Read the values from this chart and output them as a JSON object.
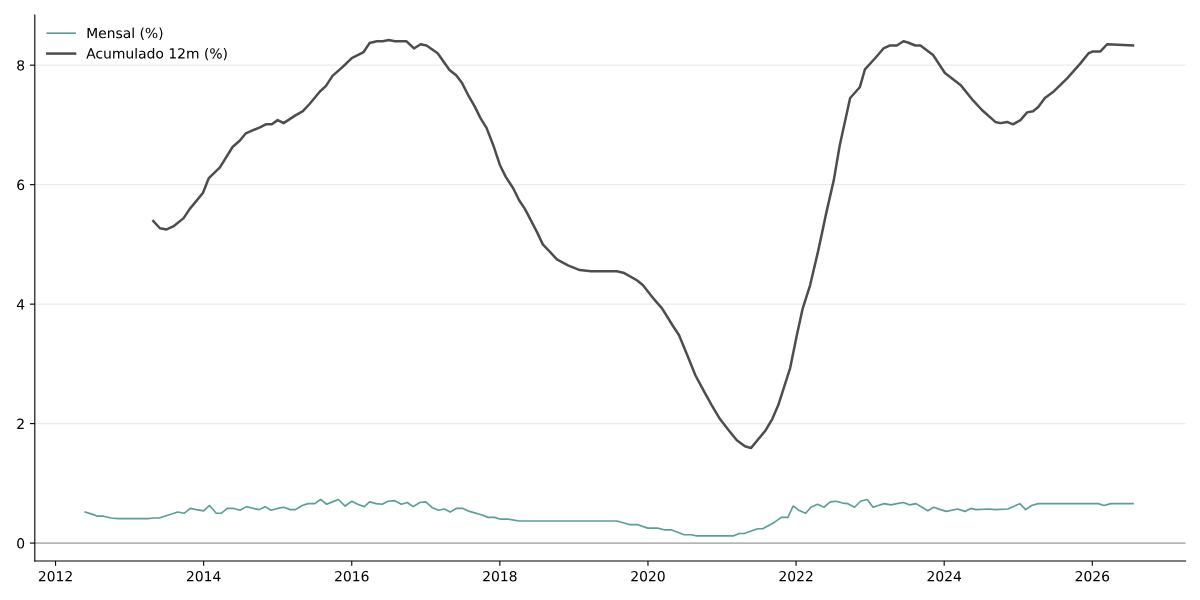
{
  "chart_data": {
    "type": "line",
    "xlim": [
      2011.72,
      2027.26
    ],
    "xticks": [
      2012,
      2014,
      2016,
      2018,
      2020,
      2022,
      2024,
      2026
    ],
    "ylim": [
      -0.3,
      8.84
    ],
    "yticks": [
      0,
      2,
      4,
      6,
      8
    ],
    "grid": "y",
    "legend": "top left",
    "marker": "none",
    "line_style": "solid",
    "ref_lines": [
      {
        "axis": "y",
        "value": 0,
        "color": "#a0a0a0"
      }
    ],
    "series": [
      {
        "name": "Mensal (%)",
        "color": "#5a9e98",
        "x": [
          2012.4,
          2012.5,
          2012.57,
          2012.65,
          2012.75,
          2012.85,
          2013.25,
          2013.32,
          2013.4,
          2013.58,
          2013.65,
          2013.74,
          2013.82,
          2013.9,
          2014.0,
          2014.08,
          2014.17,
          2014.24,
          2014.32,
          2014.41,
          2014.49,
          2014.58,
          2014.67,
          2014.75,
          2014.83,
          2014.91,
          2015.0,
          2015.08,
          2015.17,
          2015.24,
          2015.33,
          2015.41,
          2015.5,
          2015.58,
          2015.66,
          2015.74,
          2015.82,
          2015.91,
          2016.0,
          2016.08,
          2016.17,
          2016.24,
          2016.33,
          2016.41,
          2016.49,
          2016.58,
          2016.67,
          2016.75,
          2016.83,
          2016.92,
          2017.0,
          2017.09,
          2017.17,
          2017.25,
          2017.33,
          2017.41,
          2017.5,
          2017.59,
          2017.76,
          2017.84,
          2017.93,
          2018.01,
          2018.11,
          2018.26,
          2019.35,
          2019.58,
          2019.75,
          2019.85,
          2020.0,
          2020.13,
          2020.23,
          2020.32,
          2020.49,
          2020.58,
          2020.66,
          2021.15,
          2021.23,
          2021.3,
          2021.48,
          2021.55,
          2021.71,
          2021.8,
          2021.89,
          2021.96,
          2022.05,
          2022.13,
          2022.2,
          2022.29,
          2022.38,
          2022.46,
          2022.54,
          2022.63,
          2022.7,
          2022.79,
          2022.87,
          2022.96,
          2023.04,
          2023.11,
          2023.19,
          2023.28,
          2023.36,
          2023.45,
          2023.53,
          2023.62,
          2023.7,
          2023.78,
          2023.86,
          2023.95,
          2024.03,
          2024.18,
          2024.28,
          2024.36,
          2024.43,
          2024.61,
          2024.68,
          2024.86,
          2024.93,
          2025.02,
          2025.1,
          2025.18,
          2025.27,
          2025.43,
          2025.53,
          2026.08,
          2026.16,
          2026.25,
          2026.43,
          2026.55
        ],
        "values": [
          0.52,
          0.48,
          0.45,
          0.45,
          0.42,
          0.41,
          0.41,
          0.42,
          0.42,
          0.49,
          0.52,
          0.5,
          0.58,
          0.56,
          0.54,
          0.63,
          0.5,
          0.5,
          0.58,
          0.58,
          0.55,
          0.61,
          0.58,
          0.56,
          0.61,
          0.55,
          0.58,
          0.6,
          0.56,
          0.56,
          0.63,
          0.66,
          0.66,
          0.73,
          0.65,
          0.69,
          0.73,
          0.62,
          0.7,
          0.65,
          0.61,
          0.69,
          0.66,
          0.65,
          0.7,
          0.71,
          0.65,
          0.68,
          0.61,
          0.68,
          0.69,
          0.59,
          0.55,
          0.57,
          0.52,
          0.58,
          0.58,
          0.53,
          0.47,
          0.43,
          0.43,
          0.4,
          0.4,
          0.37,
          0.37,
          0.37,
          0.31,
          0.31,
          0.25,
          0.25,
          0.22,
          0.22,
          0.14,
          0.14,
          0.12,
          0.12,
          0.16,
          0.16,
          0.24,
          0.24,
          0.35,
          0.43,
          0.43,
          0.62,
          0.54,
          0.5,
          0.6,
          0.65,
          0.6,
          0.69,
          0.7,
          0.67,
          0.66,
          0.6,
          0.7,
          0.73,
          0.6,
          0.63,
          0.66,
          0.64,
          0.66,
          0.68,
          0.64,
          0.66,
          0.6,
          0.54,
          0.6,
          0.56,
          0.53,
          0.57,
          0.53,
          0.58,
          0.56,
          0.57,
          0.56,
          0.57,
          0.61,
          0.66,
          0.56,
          0.63,
          0.66,
          0.66,
          0.66,
          0.66,
          0.63,
          0.66,
          0.66,
          0.66
        ]
      },
      {
        "name": "Acumulado 12m (%)",
        "color": "#4d4d4d",
        "x": [
          2013.32,
          2013.41,
          2013.5,
          2013.59,
          2013.73,
          2013.81,
          2013.99,
          2014.07,
          2014.22,
          2014.39,
          2014.49,
          2014.57,
          2014.76,
          2014.84,
          2014.92,
          2015.0,
          2015.08,
          2015.24,
          2015.34,
          2015.43,
          2015.57,
          2015.65,
          2015.74,
          2015.84,
          2015.92,
          2016.0,
          2016.16,
          2016.24,
          2016.34,
          2016.42,
          2016.5,
          2016.58,
          2016.74,
          2016.84,
          2016.93,
          2017.01,
          2017.16,
          2017.32,
          2017.41,
          2017.49,
          2017.58,
          2017.66,
          2017.74,
          2017.82,
          2017.92,
          2018.0,
          2018.08,
          2018.18,
          2018.26,
          2018.34,
          2018.5,
          2018.58,
          2018.68,
          2018.77,
          2018.92,
          2019.08,
          2019.23,
          2019.58,
          2019.68,
          2019.85,
          2019.93,
          2020.09,
          2020.19,
          2020.34,
          2020.42,
          2020.53,
          2020.64,
          2020.77,
          2020.86,
          2020.97,
          2021.09,
          2021.2,
          2021.31,
          2021.39,
          2021.47,
          2021.59,
          2021.68,
          2021.76,
          2021.92,
          2022.01,
          2022.09,
          2022.19,
          2022.3,
          2022.41,
          2022.51,
          2022.59,
          2022.73,
          2022.86,
          2022.93,
          2023.07,
          2023.18,
          2023.27,
          2023.36,
          2023.45,
          2023.51,
          2023.61,
          2023.68,
          2023.85,
          2024.01,
          2024.22,
          2024.39,
          2024.51,
          2024.69,
          2024.76,
          2024.85,
          2024.93,
          2025.03,
          2025.12,
          2025.2,
          2025.27,
          2025.36,
          2025.47,
          2025.66,
          2025.84,
          2025.95,
          2026.01,
          2026.11,
          2026.2,
          2026.55
        ],
        "values": [
          5.39,
          5.27,
          5.25,
          5.3,
          5.44,
          5.59,
          5.86,
          6.11,
          6.29,
          6.63,
          6.74,
          6.86,
          6.96,
          7.01,
          7.01,
          7.08,
          7.03,
          7.16,
          7.23,
          7.35,
          7.56,
          7.65,
          7.82,
          7.93,
          8.02,
          8.12,
          8.22,
          8.37,
          8.4,
          8.4,
          8.42,
          8.4,
          8.4,
          8.28,
          8.35,
          8.33,
          8.2,
          7.92,
          7.83,
          7.7,
          7.48,
          7.31,
          7.11,
          6.95,
          6.63,
          6.33,
          6.13,
          5.94,
          5.74,
          5.59,
          5.21,
          5.0,
          4.87,
          4.75,
          4.65,
          4.57,
          4.55,
          4.55,
          4.52,
          4.4,
          4.32,
          4.07,
          3.93,
          3.63,
          3.48,
          3.15,
          2.81,
          2.51,
          2.31,
          2.08,
          1.89,
          1.72,
          1.62,
          1.59,
          1.71,
          1.89,
          2.08,
          2.31,
          2.93,
          3.48,
          3.93,
          4.32,
          4.9,
          5.54,
          6.08,
          6.66,
          7.45,
          7.63,
          7.93,
          8.12,
          8.28,
          8.33,
          8.33,
          8.4,
          8.38,
          8.33,
          8.33,
          8.17,
          7.87,
          7.67,
          7.41,
          7.25,
          7.05,
          7.03,
          7.05,
          7.01,
          7.08,
          7.21,
          7.23,
          7.3,
          7.45,
          7.55,
          7.78,
          8.03,
          8.2,
          8.23,
          8.23,
          8.35,
          8.33
        ]
      }
    ]
  }
}
